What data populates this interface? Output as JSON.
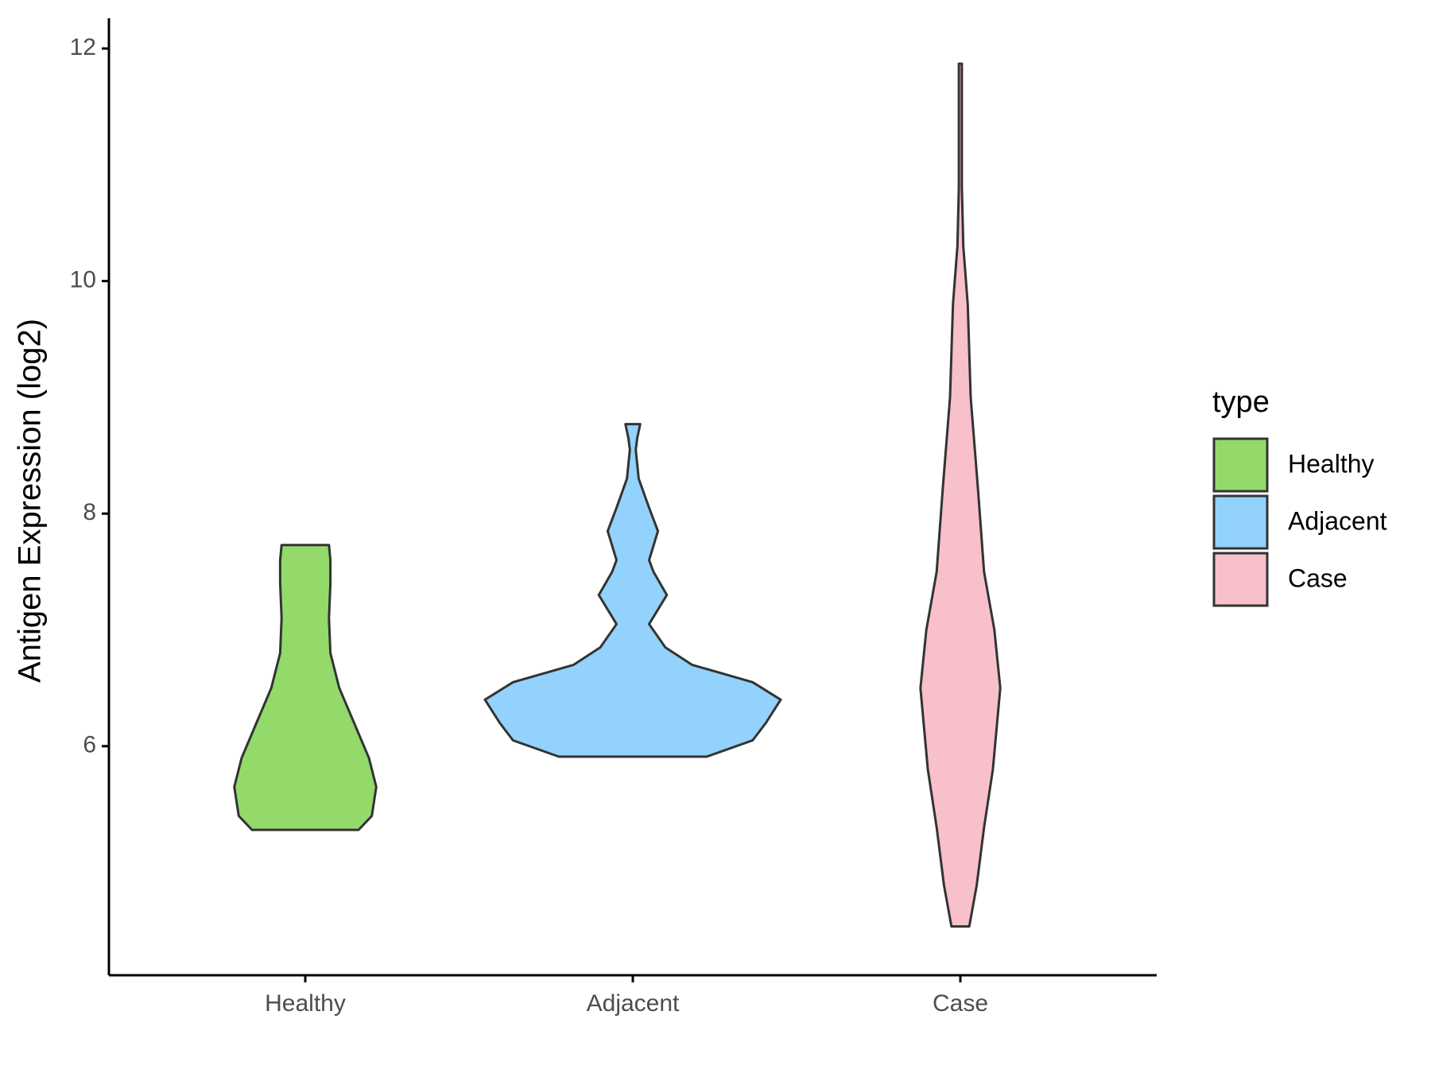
{
  "chart_data": {
    "type": "violin",
    "y_label": "Antigen Expression (log2)",
    "categories": [
      "Healthy",
      "Adjacent",
      "Case"
    ],
    "legend_title": "type",
    "legend_position": "right",
    "ylim": [
      4.03,
      12.26
    ],
    "yticks": [
      6,
      8,
      10,
      12
    ],
    "grid": false,
    "series": [
      {
        "name": "Healthy",
        "color": "#93da6a",
        "y": [
          5.28,
          5.4,
          5.65,
          5.9,
          6.2,
          6.5,
          6.8,
          7.1,
          7.4,
          7.6,
          7.73
        ],
        "width": [
          0.36,
          0.45,
          0.48,
          0.43,
          0.33,
          0.23,
          0.17,
          0.16,
          0.17,
          0.17,
          0.16
        ]
      },
      {
        "name": "Adjacent",
        "color": "#92d2fc",
        "y": [
          5.91,
          6.05,
          6.2,
          6.4,
          6.55,
          6.7,
          6.85,
          7.05,
          7.3,
          7.5,
          7.6,
          7.85,
          8.05,
          8.3,
          8.55,
          8.65,
          8.77
        ],
        "width": [
          0.5,
          0.81,
          0.9,
          1,
          0.81,
          0.4,
          0.22,
          0.11,
          0.23,
          0.14,
          0.11,
          0.17,
          0.11,
          0.04,
          0.02,
          0.03,
          0.05
        ]
      },
      {
        "name": "Case",
        "color": "#f7c0cb",
        "y": [
          4.45,
          4.8,
          5.3,
          5.8,
          6.5,
          7.0,
          7.5,
          8.2,
          9.0,
          9.8,
          10.3,
          10.8,
          11.3,
          11.87
        ],
        "width": [
          0.06,
          0.11,
          0.16,
          0.22,
          0.27,
          0.23,
          0.16,
          0.12,
          0.07,
          0.05,
          0.02,
          0.01,
          0.01,
          0.01
        ]
      }
    ]
  }
}
